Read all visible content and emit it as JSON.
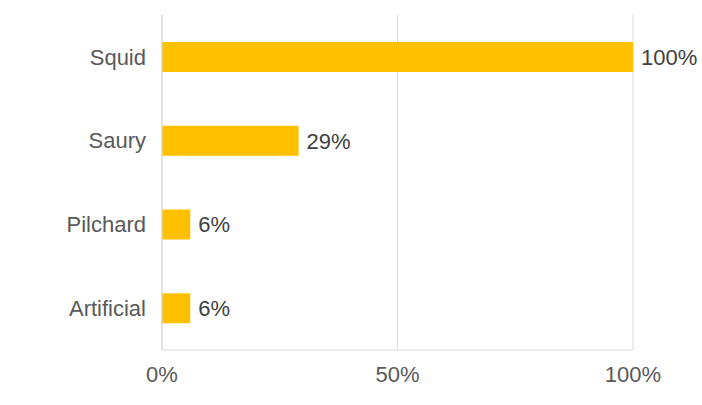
{
  "chart_data": {
    "type": "bar",
    "orientation": "horizontal",
    "categories": [
      "Squid",
      "Saury",
      "Pilchard",
      "Artificial"
    ],
    "values": [
      100,
      29,
      6,
      6
    ],
    "value_labels": [
      "100%",
      "29%",
      "6%",
      "6%"
    ],
    "data_labels": true,
    "color": "#ffc000",
    "xlim": [
      0,
      100
    ],
    "xticks": [
      {
        "value": 0,
        "label": "0%"
      },
      {
        "value": 50,
        "label": "50%"
      },
      {
        "value": 100,
        "label": "100%"
      }
    ],
    "grid": true
  }
}
